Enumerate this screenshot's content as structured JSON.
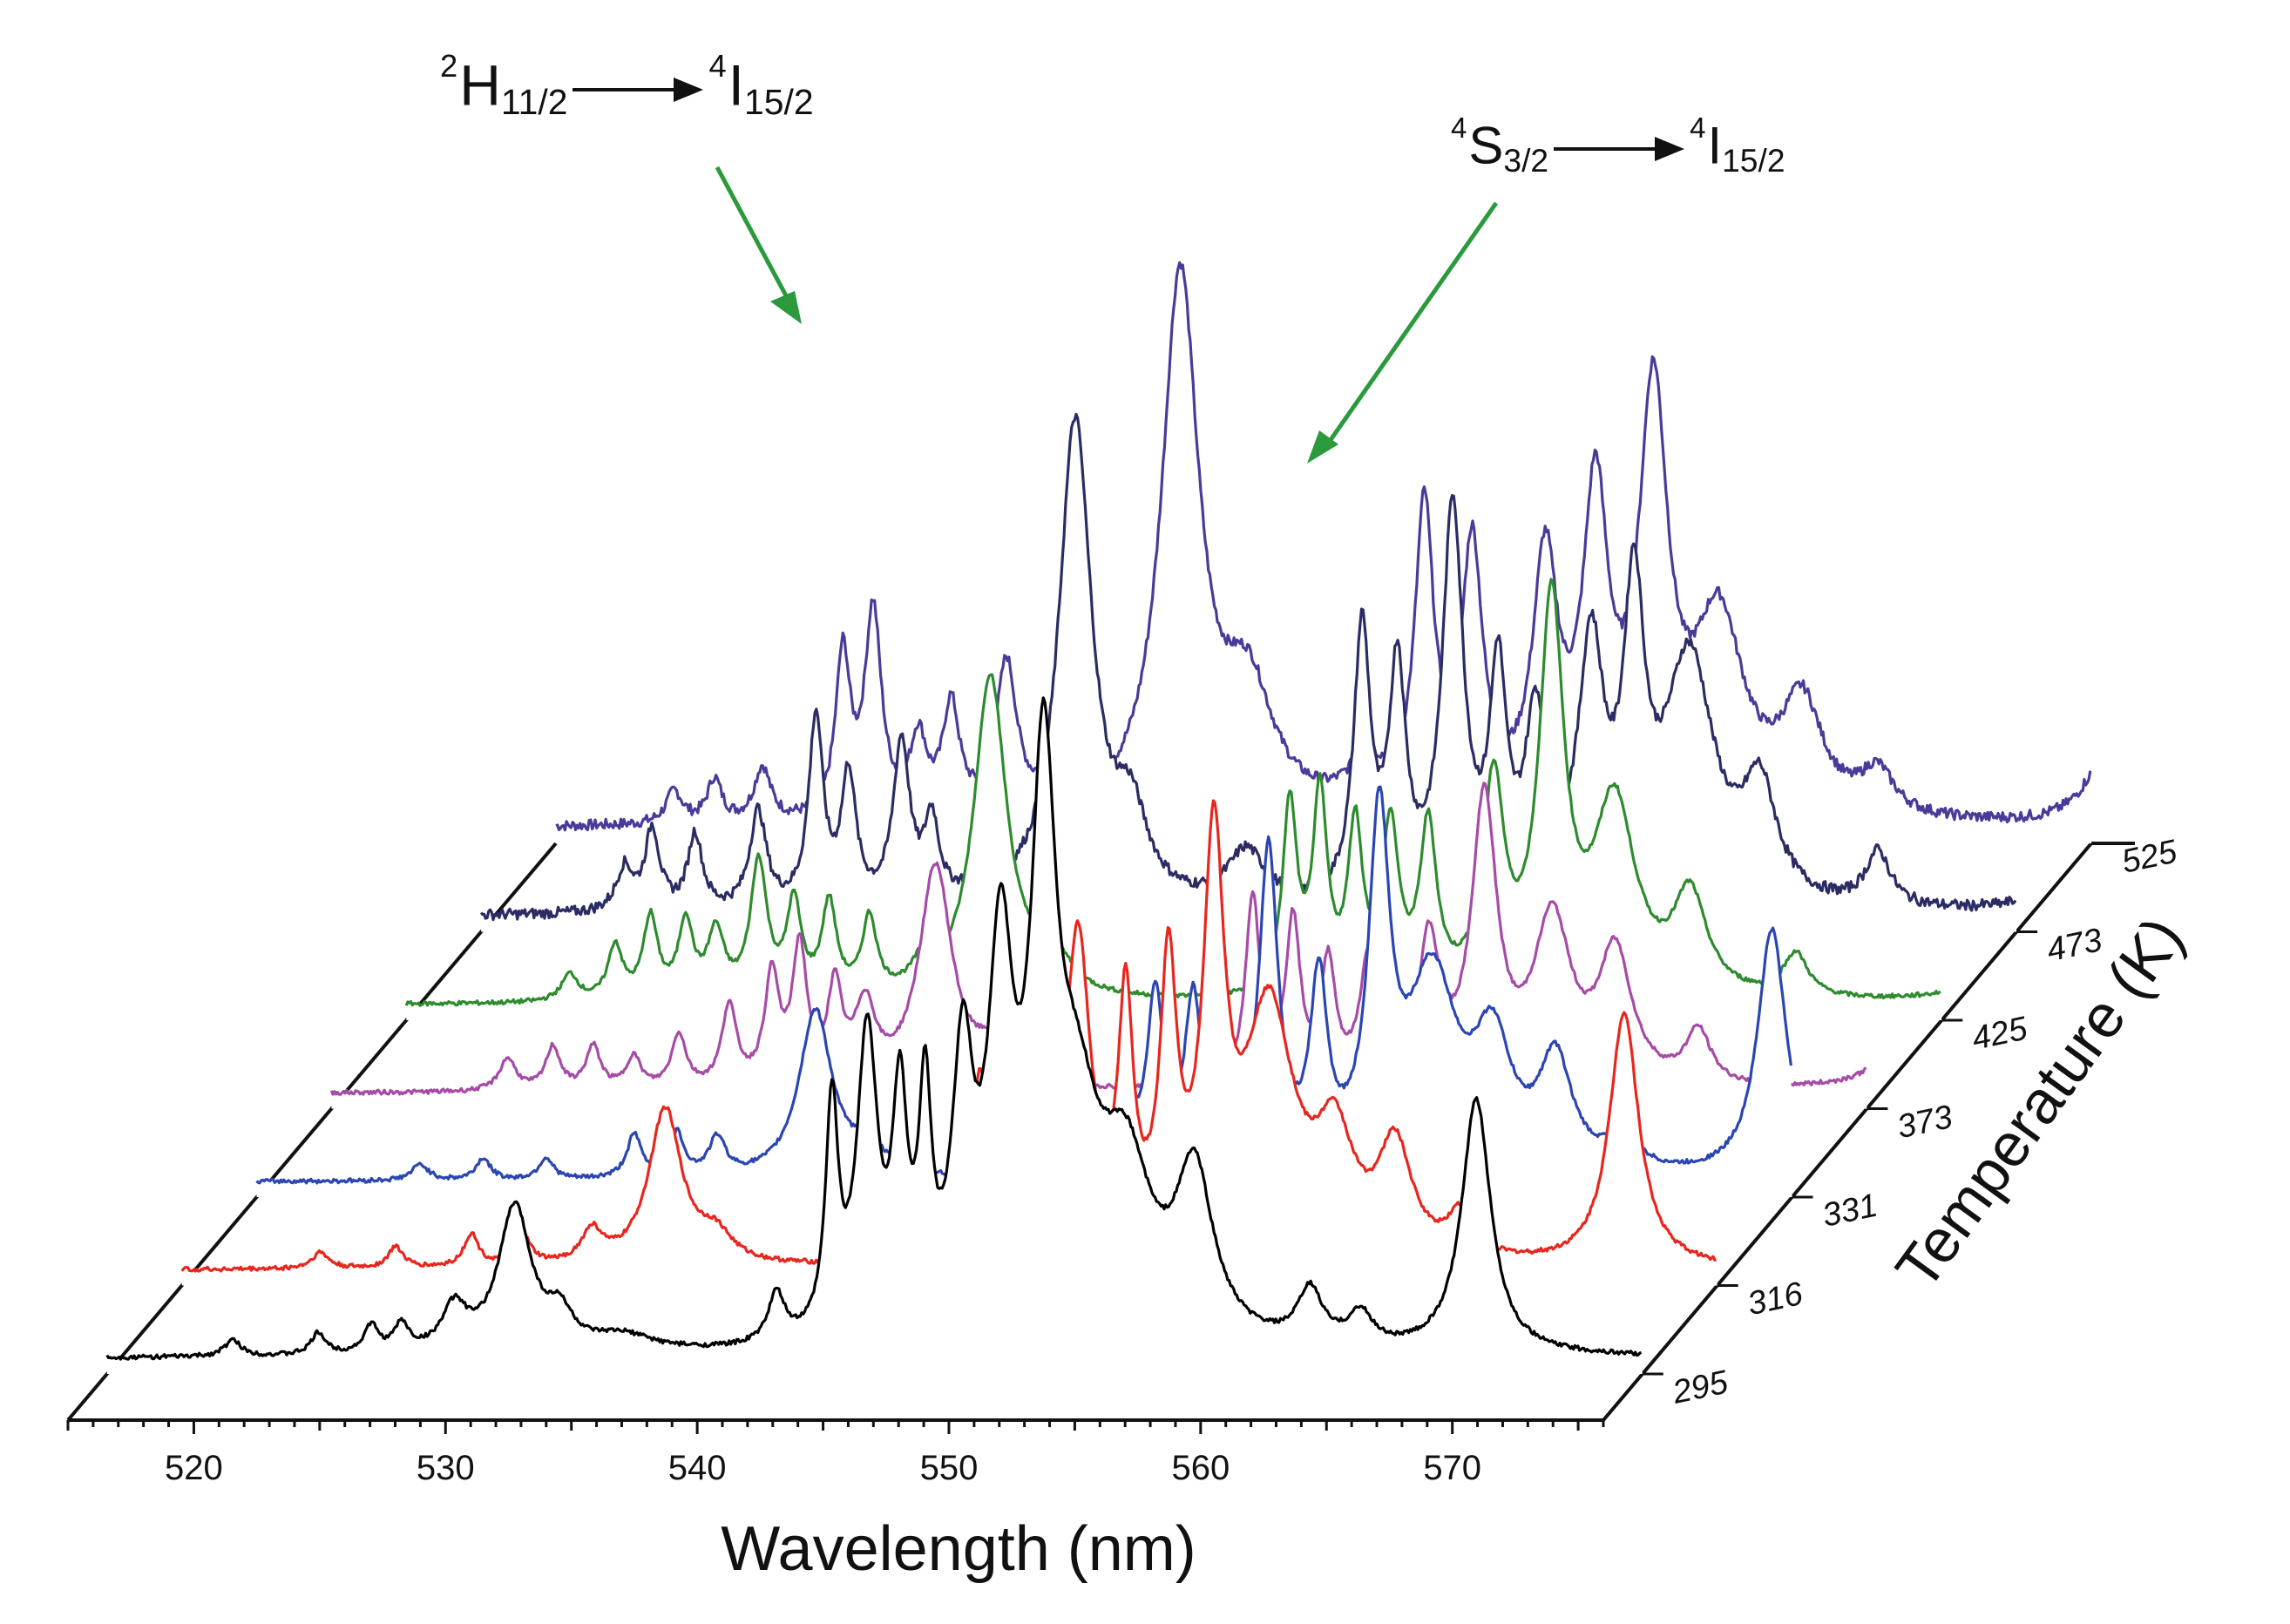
{
  "chart_data": {
    "type": "line",
    "subtype": "3d-waterfall",
    "title": "",
    "xlabel": "Wavelength (nm)",
    "zlabel": "Temperature (K)",
    "xlim": [
      515,
      576
    ],
    "xticks": [
      520,
      530,
      540,
      550,
      560,
      570
    ],
    "grid": false,
    "legend": "none",
    "series": [
      {
        "name": "295",
        "color": "#000000",
        "peaks": [
          [
            520,
            0.03,
            0.4
          ],
          [
            523.4,
            0.04,
            0.35
          ],
          [
            525.5,
            0.05,
            0.35
          ],
          [
            526.7,
            0.05,
            0.35
          ],
          [
            528.8,
            0.08,
            0.6
          ],
          [
            531.2,
            0.27,
            0.8
          ],
          [
            533,
            0.06,
            0.6
          ],
          [
            535.5,
            0.03,
            1.5
          ],
          [
            541.6,
            0.09,
            0.4
          ],
          [
            543.8,
            0.42,
            0.3
          ],
          [
            545.2,
            0.55,
            0.5
          ],
          [
            546.5,
            0.4,
            0.35
          ],
          [
            547.5,
            0.4,
            0.3
          ],
          [
            549,
            0.47,
            0.5
          ],
          [
            550.5,
            0.65,
            0.6
          ],
          [
            552.2,
            0.93,
            0.6
          ],
          [
            553.5,
            0.35,
            1.2
          ],
          [
            555.5,
            0.28,
            1.2
          ],
          [
            558.2,
            0.3,
            0.9
          ],
          [
            562.8,
            0.1,
            0.6
          ],
          [
            564.8,
            0.06,
            0.6
          ],
          [
            569.4,
            0.47,
            0.7
          ]
        ]
      },
      {
        "name": "316",
        "color": "#e8261e",
        "peaks": [
          [
            520.5,
            0.03,
            0.4
          ],
          [
            523.5,
            0.04,
            0.35
          ],
          [
            526.5,
            0.06,
            0.35
          ],
          [
            528.5,
            0.06,
            0.4
          ],
          [
            531.3,
            0.06,
            0.5
          ],
          [
            534.2,
            0.29,
            0.8
          ],
          [
            536.2,
            0.05,
            0.8
          ],
          [
            546.7,
            0.3,
            0.4
          ],
          [
            547.8,
            0.25,
            0.4
          ],
          [
            548.8,
            0.37,
            0.5
          ],
          [
            550.6,
            0.57,
            0.6
          ],
          [
            552.5,
            0.44,
            0.35
          ],
          [
            554.2,
            0.5,
            0.4
          ],
          [
            556,
            0.72,
            0.5
          ],
          [
            558.2,
            0.45,
            1.2
          ],
          [
            560.8,
            0.2,
            0.9
          ],
          [
            563.2,
            0.2,
            0.8
          ],
          [
            565.8,
            0.08,
            0.6
          ],
          [
            572.3,
            0.47,
            0.7
          ]
        ]
      },
      {
        "name": "331",
        "color": "#2b46b3",
        "peaks": [
          [
            521.5,
            0.03,
            0.4
          ],
          [
            524,
            0.04,
            0.35
          ],
          [
            526.5,
            0.04,
            0.35
          ],
          [
            530,
            0.08,
            0.35
          ],
          [
            531.7,
            0.08,
            0.35
          ],
          [
            533.3,
            0.07,
            0.4
          ],
          [
            537.2,
            0.31,
            0.8
          ],
          [
            539.3,
            0.05,
            0.8
          ],
          [
            549.4,
            0.2,
            0.35
          ],
          [
            550.7,
            0.32,
            0.4
          ],
          [
            552.2,
            0.3,
            0.4
          ],
          [
            553.6,
            0.2,
            0.4
          ],
          [
            555.2,
            0.58,
            0.45
          ],
          [
            557.2,
            0.33,
            0.4
          ],
          [
            559.6,
            0.62,
            0.5
          ],
          [
            561.7,
            0.35,
            1.2
          ],
          [
            564.1,
            0.22,
            0.9
          ],
          [
            566.6,
            0.2,
            0.8
          ],
          [
            569.3,
            0.08,
            0.6
          ],
          [
            575.2,
            0.46,
            0.7
          ]
        ]
      },
      {
        "name": "373",
        "color": "#a64ca6",
        "peaks": [
          [
            522,
            0.06,
            0.4
          ],
          [
            523.8,
            0.08,
            0.35
          ],
          [
            525.4,
            0.08,
            0.35
          ],
          [
            527,
            0.06,
            0.35
          ],
          [
            528.8,
            0.1,
            0.35
          ],
          [
            530.8,
            0.15,
            0.35
          ],
          [
            532.5,
            0.2,
            0.35
          ],
          [
            533.6,
            0.25,
            0.35
          ],
          [
            535,
            0.17,
            0.35
          ],
          [
            536.2,
            0.14,
            0.5
          ],
          [
            539,
            0.41,
            0.8
          ],
          [
            541.3,
            0.07,
            0.8
          ],
          [
            551.6,
            0.35,
            0.35
          ],
          [
            553.2,
            0.3,
            0.35
          ],
          [
            554.6,
            0.22,
            0.35
          ],
          [
            556.2,
            0.23,
            0.4
          ],
          [
            558.6,
            0.26,
            0.5
          ],
          [
            560.8,
            0.52,
            0.6
          ],
          [
            563.5,
            0.3,
            0.9
          ],
          [
            566,
            0.24,
            0.8
          ],
          [
            569.3,
            0.1,
            0.6
          ],
          [
            578.2,
            0.44,
            0.7
          ]
        ]
      },
      {
        "name": "425",
        "color": "#2e8b2e",
        "peaks": [
          [
            521.5,
            0.05,
            0.4
          ],
          [
            523.3,
            0.1,
            0.35
          ],
          [
            524.7,
            0.15,
            0.35
          ],
          [
            526.1,
            0.14,
            0.35
          ],
          [
            527.3,
            0.12,
            0.4
          ],
          [
            529,
            0.25,
            0.4
          ],
          [
            530.4,
            0.17,
            0.35
          ],
          [
            531.8,
            0.17,
            0.35
          ],
          [
            533.4,
            0.14,
            0.35
          ],
          [
            535.5,
            0.05,
            0.5
          ],
          [
            538.2,
            0.6,
            0.8
          ],
          [
            540.6,
            0.08,
            0.8
          ],
          [
            550.1,
            0.35,
            0.35
          ],
          [
            551.3,
            0.36,
            0.35
          ],
          [
            552.7,
            0.3,
            0.35
          ],
          [
            554.1,
            0.3,
            0.4
          ],
          [
            555.6,
            0.3,
            0.4
          ],
          [
            558.2,
            0.38,
            0.5
          ],
          [
            560.5,
            0.71,
            0.6
          ],
          [
            563,
            0.35,
            1
          ],
          [
            566,
            0.18,
            0.8
          ],
          [
            570.2,
            0.08,
            0.6
          ],
          [
            579.3,
            0.44,
            0.7
          ]
        ]
      },
      {
        "name": "473",
        "color": "#2c2c64",
        "peaks": [
          [
            520.7,
            0.08,
            0.4
          ],
          [
            521.8,
            0.15,
            0.35
          ],
          [
            523.5,
            0.14,
            0.35
          ],
          [
            526,
            0.18,
            0.4
          ],
          [
            528.3,
            0.35,
            0.35
          ],
          [
            529.6,
            0.24,
            0.35
          ],
          [
            531.7,
            0.3,
            0.4
          ],
          [
            532.9,
            0.15,
            0.35
          ],
          [
            535,
            0.12,
            0.35
          ],
          [
            538.6,
            0.9,
            0.8
          ],
          [
            540.8,
            0.15,
            0.8
          ],
          [
            545.4,
            0.1,
            0.9
          ],
          [
            550,
            0.5,
            0.4
          ],
          [
            551.4,
            0.42,
            0.4
          ],
          [
            553.6,
            0.72,
            0.5
          ],
          [
            555.4,
            0.4,
            0.4
          ],
          [
            556.9,
            0.32,
            0.5
          ],
          [
            559.1,
            0.45,
            0.6
          ],
          [
            560.8,
            0.52,
            0.5
          ],
          [
            563,
            0.45,
            1.2
          ],
          [
            565.8,
            0.2,
            0.8
          ],
          [
            570.5,
            0.1,
            0.6
          ],
          [
            578.9,
            0.3,
            0.8
          ]
        ]
      },
      {
        "name": "525",
        "color": "#4b3a99",
        "peaks": [
          [
            519.7,
            0.06,
            0.4
          ],
          [
            521.3,
            0.08,
            0.35
          ],
          [
            523.2,
            0.1,
            0.4
          ],
          [
            526.4,
            0.3,
            0.35
          ],
          [
            527.6,
            0.38,
            0.4
          ],
          [
            529.4,
            0.14,
            0.4
          ],
          [
            530.7,
            0.2,
            0.4
          ],
          [
            532.9,
            0.28,
            0.5
          ],
          [
            534.7,
            0.1,
            0.4
          ],
          [
            539.8,
            1,
            0.9
          ],
          [
            542.5,
            0.22,
            1.2
          ],
          [
            547.2,
            0.08,
            0.9
          ],
          [
            549.5,
            0.55,
            0.45
          ],
          [
            551.4,
            0.48,
            0.5
          ],
          [
            554.3,
            0.45,
            0.6
          ],
          [
            556.3,
            0.56,
            0.6
          ],
          [
            558.6,
            0.75,
            0.7
          ],
          [
            561.2,
            0.35,
            1.2
          ],
          [
            564.5,
            0.2,
            1
          ],
          [
            567.5,
            0.08,
            0.8
          ],
          [
            576.5,
            0.12,
            1
          ]
        ]
      }
    ]
  },
  "annotations": {
    "left": {
      "sup": "2",
      "sym": "H",
      "sub": "11/2",
      "sup2": "4",
      "sym2": "I",
      "sub2": "15/2"
    },
    "right": {
      "sup": "4",
      "sym": "S",
      "sub": "3/2",
      "sup2": "4",
      "sym2": "I",
      "sub2": "15/2"
    },
    "arrow_color": "#2b9a3c"
  }
}
